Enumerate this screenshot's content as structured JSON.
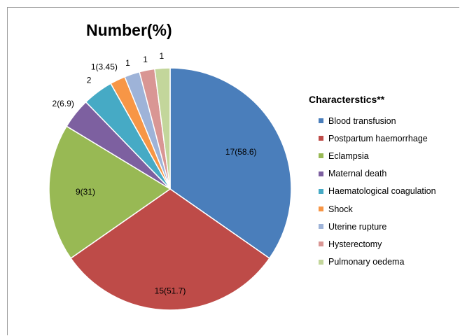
{
  "chart_data": {
    "type": "pie",
    "title": "Number(%)",
    "legend_title": "Characterstics**",
    "legend_position": "right",
    "start_angle_deg": 0,
    "direction": "clockwise",
    "slices": [
      {
        "label": "Blood transfusion",
        "value": 17,
        "data_label": "17(58.6)",
        "color": "#4A7EBB"
      },
      {
        "label": "Postpartum haemorrhage",
        "value": 15,
        "data_label": "15(51.7)",
        "color": "#BE4B48"
      },
      {
        "label": "Eclampsia",
        "value": 9,
        "data_label": "9(31)",
        "color": "#98B954"
      },
      {
        "label": "Maternal death",
        "value": 2,
        "data_label": "2(6.9)",
        "color": "#7D60A0"
      },
      {
        "label": "Haematological coagulation",
        "value": 2,
        "data_label": "2",
        "color": "#46AAC5"
      },
      {
        "label": "Shock",
        "value": 1,
        "data_label": "1(3.45)",
        "color": "#F79646"
      },
      {
        "label": "Uterine rupture",
        "value": 1,
        "data_label": "1",
        "color": "#9EB3D8"
      },
      {
        "label": "Hysterectomy",
        "value": 1,
        "data_label": "1",
        "color": "#D99694"
      },
      {
        "label": "Pulmonary oedema",
        "value": 1,
        "data_label": "1",
        "color": "#C3D69B"
      }
    ]
  }
}
